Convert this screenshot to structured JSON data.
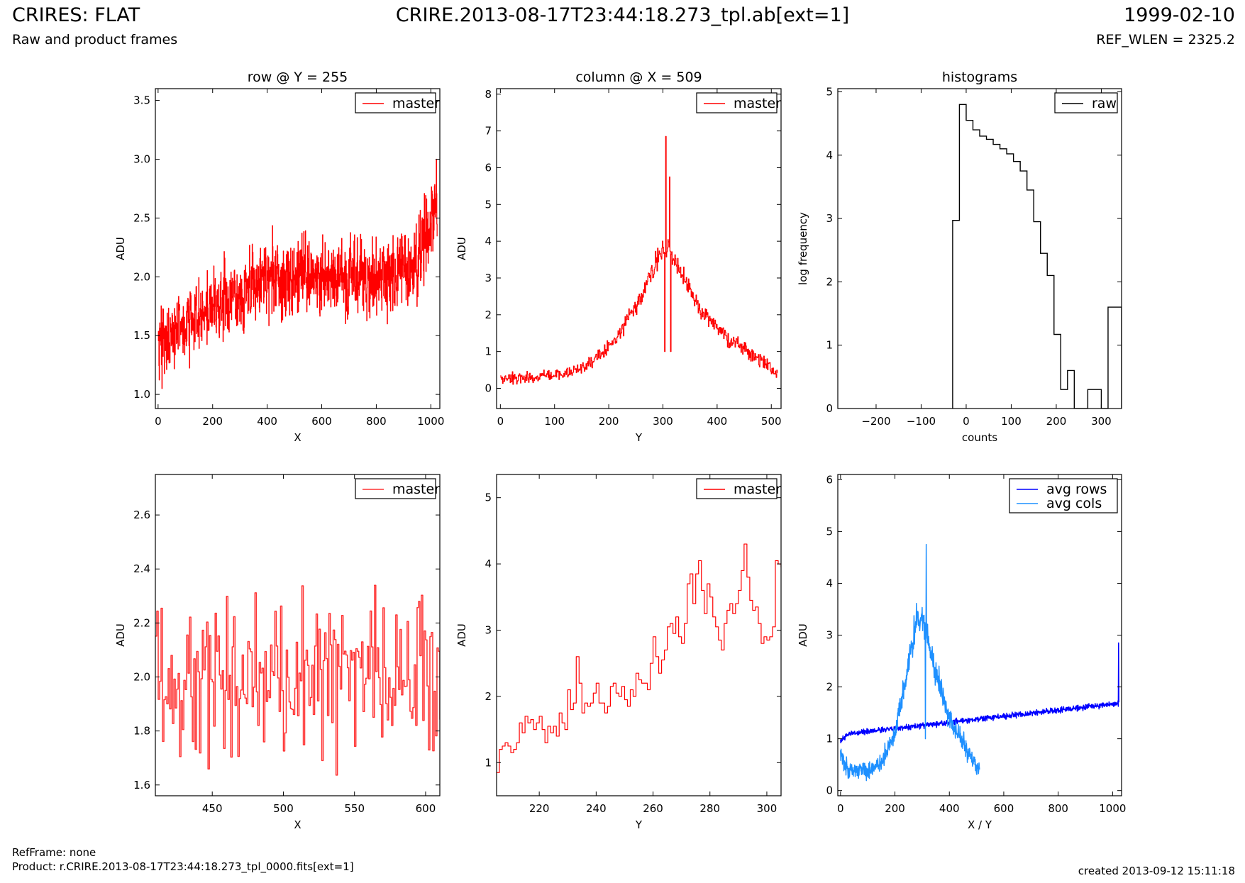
{
  "header": {
    "title": "CRIRES: FLAT",
    "subtitle": "Raw and product frames",
    "center": "CRIRE.2013-08-17T23:44:18.273_tpl.ab[ext=1]",
    "date": "1999-02-10",
    "refwlen": "REF_WLEN = 2325.2"
  },
  "footer": {
    "refframe": "RefFrame: none",
    "product": "Product: r.CRIRE.2013-08-17T23:44:18.273_tpl_0000.fits[ext=1]",
    "created": "created 2013-09-12 15:11:18"
  },
  "colors": {
    "red": "#ff0000",
    "blue": "#0000ff",
    "lightblue": "#1e90ff",
    "black": "#000000"
  },
  "chart_data": [
    {
      "id": "row-full",
      "type": "line",
      "title": "row @ Y = 255",
      "xlabel": "X",
      "ylabel": "ADU",
      "xlim": [
        -10,
        1033
      ],
      "ylim": [
        0.88,
        3.6
      ],
      "xticks": [
        0,
        200,
        400,
        600,
        800,
        1000
      ],
      "yticks": [
        1.0,
        1.5,
        2.0,
        2.5,
        3.0,
        3.5
      ],
      "ytick_labels": [
        "1.0",
        "1.5",
        "2.0",
        "2.5",
        "3.0",
        "3.5"
      ],
      "legend": "top-right",
      "series": [
        {
          "name": "master",
          "color": "#ff0000",
          "step": true,
          "trend": {
            "x": [
              0,
              100,
              250,
              400,
              600,
              850,
              950,
              1023
            ],
            "y": [
              1.45,
              1.6,
              1.8,
              1.97,
              2.0,
              2.0,
              2.15,
              2.6
            ]
          },
          "n": 1024,
          "noise": 0.17,
          "highlights": [
            {
              "x": 1020,
              "y": 3.0
            },
            {
              "x": 14,
              "y": 1.05
            },
            {
              "x": 840,
              "y": 1.6
            }
          ]
        }
      ]
    },
    {
      "id": "col-full",
      "type": "line",
      "title": "column @ X = 509",
      "xlabel": "Y",
      "ylabel": "ADU",
      "xlim": [
        -7,
        518
      ],
      "ylim": [
        -0.55,
        8.15
      ],
      "xticks": [
        0,
        100,
        200,
        300,
        400,
        500
      ],
      "yticks": [
        0,
        1,
        2,
        3,
        4,
        5,
        6,
        7,
        8
      ],
      "legend": "top-right",
      "series": [
        {
          "name": "master",
          "color": "#ff0000",
          "step": true,
          "trend": {
            "x": [
              0,
              100,
              150,
              200,
              250,
              290,
              310,
              330,
              370,
              420,
              480,
              512
            ],
            "y": [
              0.25,
              0.35,
              0.55,
              1.1,
              2.2,
              3.5,
              3.9,
              3.2,
              2.1,
              1.3,
              0.8,
              0.4
            ]
          },
          "n": 512,
          "noise": 0.12,
          "highlights": [
            {
              "x": 305,
              "y": 6.85
            },
            {
              "x": 312,
              "y": 5.75
            },
            {
              "x": 303,
              "y": 1.0
            },
            {
              "x": 314,
              "y": 1.0
            }
          ]
        }
      ]
    },
    {
      "id": "histogram",
      "type": "bar",
      "title": "histograms",
      "xlabel": "counts",
      "ylabel": "log frequency",
      "xlim": [
        -285,
        345
      ],
      "ylim": [
        0,
        5.05
      ],
      "xticks": [
        -200,
        -100,
        0,
        100,
        200,
        300
      ],
      "yticks": [
        0,
        1,
        2,
        3,
        4,
        5
      ],
      "legend": "top-right",
      "series": [
        {
          "name": "raw",
          "color": "#000000",
          "bin_edges": [
            -30,
            -15,
            0,
            15,
            30,
            45,
            60,
            75,
            90,
            105,
            120,
            135,
            150,
            165,
            180,
            195,
            210,
            225,
            240,
            255,
            270,
            285,
            300,
            315,
            330,
            345
          ],
          "log_counts": [
            2.97,
            4.8,
            4.55,
            4.4,
            4.3,
            4.25,
            4.17,
            4.1,
            4.02,
            3.9,
            3.75,
            3.45,
            2.95,
            2.45,
            2.1,
            1.17,
            0.3,
            0.6,
            0,
            0,
            0.3,
            0.3,
            0,
            1.6,
            1.6
          ]
        }
      ]
    },
    {
      "id": "row-zoom",
      "type": "line",
      "title": "",
      "xlabel": "X",
      "ylabel": "ADU",
      "xlim": [
        410,
        610
      ],
      "ylim": [
        1.56,
        2.75
      ],
      "xticks": [
        450,
        500,
        550,
        600
      ],
      "yticks": [
        1.6,
        1.8,
        2.0,
        2.2,
        2.4,
        2.6
      ],
      "ytick_labels": [
        "1.6",
        "1.8",
        "2.0",
        "2.2",
        "2.4",
        "2.6"
      ],
      "legend": "top-right",
      "series": [
        {
          "name": "master",
          "color": "#ff3333",
          "step": true,
          "x_start": 410,
          "x_end": 610,
          "mean": 2.0,
          "spread": 0.17,
          "seed": 17
        }
      ]
    },
    {
      "id": "col-zoom",
      "type": "line",
      "title": "",
      "xlabel": "Y",
      "ylabel": "ADU",
      "xlim": [
        205,
        305
      ],
      "ylim": [
        0.5,
        5.35
      ],
      "xticks": [
        220,
        240,
        260,
        280,
        300
      ],
      "yticks": [
        1,
        2,
        3,
        4,
        5
      ],
      "legend": "top-right",
      "series": [
        {
          "name": "master",
          "color": "#ff0000",
          "step": true,
          "points": [
            [
              205,
              0.85
            ],
            [
              206,
              1.2
            ],
            [
              207,
              1.25
            ],
            [
              208,
              1.3
            ],
            [
              209,
              1.25
            ],
            [
              210,
              1.15
            ],
            [
              211,
              1.2
            ],
            [
              212,
              1.3
            ],
            [
              213,
              1.6
            ],
            [
              214,
              1.45
            ],
            [
              215,
              1.7
            ],
            [
              216,
              1.6
            ],
            [
              217,
              1.65
            ],
            [
              218,
              1.5
            ],
            [
              219,
              1.6
            ],
            [
              220,
              1.7
            ],
            [
              221,
              1.5
            ],
            [
              222,
              1.3
            ],
            [
              223,
              1.55
            ],
            [
              224,
              1.45
            ],
            [
              225,
              1.55
            ],
            [
              226,
              1.4
            ],
            [
              227,
              1.75
            ],
            [
              228,
              1.6
            ],
            [
              229,
              1.5
            ],
            [
              230,
              2.1
            ],
            [
              231,
              1.8
            ],
            [
              232,
              1.9
            ],
            [
              233,
              2.6
            ],
            [
              234,
              2.2
            ],
            [
              235,
              1.75
            ],
            [
              236,
              1.9
            ],
            [
              237,
              1.85
            ],
            [
              238,
              1.9
            ],
            [
              239,
              2.05
            ],
            [
              240,
              2.2
            ],
            [
              241,
              1.9
            ],
            [
              242,
              1.9
            ],
            [
              243,
              1.75
            ],
            [
              244,
              1.85
            ],
            [
              245,
              2.15
            ],
            [
              246,
              2.2
            ],
            [
              247,
              2.05
            ],
            [
              248,
              2.0
            ],
            [
              249,
              2.15
            ],
            [
              250,
              1.95
            ],
            [
              251,
              1.85
            ],
            [
              252,
              2.1
            ],
            [
              253,
              2.0
            ],
            [
              254,
              2.35
            ],
            [
              255,
              2.25
            ],
            [
              256,
              2.2
            ],
            [
              257,
              2.2
            ],
            [
              258,
              2.1
            ],
            [
              259,
              2.5
            ],
            [
              260,
              2.9
            ],
            [
              261,
              2.6
            ],
            [
              262,
              2.35
            ],
            [
              263,
              2.55
            ],
            [
              264,
              2.7
            ],
            [
              265,
              3.05
            ],
            [
              266,
              3.1
            ],
            [
              267,
              2.95
            ],
            [
              268,
              3.2
            ],
            [
              269,
              2.9
            ],
            [
              270,
              2.8
            ],
            [
              271,
              3.1
            ],
            [
              272,
              3.7
            ],
            [
              273,
              3.85
            ],
            [
              274,
              3.4
            ],
            [
              275,
              3.85
            ],
            [
              276,
              4.05
            ],
            [
              277,
              3.6
            ],
            [
              278,
              3.25
            ],
            [
              279,
              3.7
            ],
            [
              280,
              3.5
            ],
            [
              281,
              3.2
            ],
            [
              282,
              3.05
            ],
            [
              283,
              2.85
            ],
            [
              284,
              2.7
            ],
            [
              285,
              3.1
            ],
            [
              286,
              3.3
            ],
            [
              287,
              3.4
            ],
            [
              288,
              3.25
            ],
            [
              289,
              3.4
            ],
            [
              290,
              3.6
            ],
            [
              291,
              3.9
            ],
            [
              292,
              4.3
            ],
            [
              293,
              3.8
            ],
            [
              294,
              3.45
            ],
            [
              295,
              3.3
            ],
            [
              296,
              3.35
            ],
            [
              297,
              3.1
            ],
            [
              298,
              2.8
            ],
            [
              299,
              2.9
            ],
            [
              300,
              2.85
            ],
            [
              301,
              2.9
            ],
            [
              302,
              3.05
            ],
            [
              303,
              4.05
            ],
            [
              304,
              4.0
            ],
            [
              305,
              3.95
            ]
          ]
        }
      ]
    },
    {
      "id": "averages",
      "type": "line",
      "title": "",
      "xlabel": "X / Y",
      "ylabel": "ADU",
      "xlim": [
        -10,
        1033
      ],
      "ylim": [
        -0.1,
        6.1
      ],
      "xticks": [
        0,
        200,
        400,
        600,
        800,
        1000
      ],
      "yticks": [
        0,
        1,
        2,
        3,
        4,
        5,
        6
      ],
      "legend": "top-right",
      "series": [
        {
          "name": "avg rows",
          "color": "#0000ff",
          "trend": {
            "x": [
              0,
              30,
              1020,
              1023
            ],
            "y": [
              0.95,
              1.1,
              1.68,
              1.68
            ]
          },
          "n": 1024,
          "noise": 0.03,
          "highlights": [
            {
              "x": 1022,
              "y": 2.85
            }
          ]
        },
        {
          "name": "avg cols",
          "color": "#1e90ff",
          "trend": {
            "x": [
              0,
              15,
              30,
              100,
              150,
              200,
              240,
              270,
              295,
              320,
              350,
              400,
              450,
              480,
              510
            ],
            "y": [
              0.7,
              0.5,
              0.38,
              0.38,
              0.55,
              1.1,
              2.1,
              3.1,
              3.45,
              3.0,
              2.3,
              1.4,
              0.95,
              0.65,
              0.42
            ]
          },
          "n": 512,
          "noise": 0.12,
          "highlights": [
            {
              "x": 315,
              "y": 4.75
            },
            {
              "x": 312,
              "y": 1.0
            }
          ]
        }
      ]
    }
  ]
}
